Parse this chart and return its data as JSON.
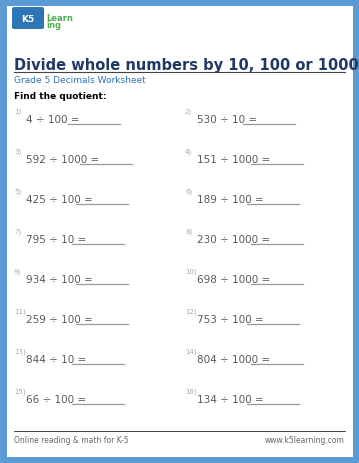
{
  "title": "Divide whole numbers by 10, 100 or 1000",
  "subtitle": "Grade 5 Decimals Worksheet",
  "instruction": "Find the quotient:",
  "footer_left": "Online reading & math for K-5",
  "footer_right": "www.k5learning.com",
  "border_color": "#5b9bd5",
  "title_color": "#1f3864",
  "subtitle_color": "#2e75b6",
  "instruction_color": "#000000",
  "problem_color": "#595959",
  "number_color": "#aaaaaa",
  "line_color": "#999999",
  "footer_color": "#666666",
  "bg_color": "#ffffff",
  "problems_left": [
    {
      "num": "1)",
      "expr": "4 ÷ 100 = "
    },
    {
      "num": "3)",
      "expr": "592 ÷ 1000 = "
    },
    {
      "num": "5)",
      "expr": "425 ÷ 100 = "
    },
    {
      "num": "7)",
      "expr": "795 ÷ 10 = "
    },
    {
      "num": "9)",
      "expr": "934 ÷ 100 = "
    },
    {
      "num": "11)",
      "expr": "259 ÷ 100 = "
    },
    {
      "num": "13)",
      "expr": "844 ÷ 10 = "
    },
    {
      "num": "15)",
      "expr": "66 ÷ 100 = "
    }
  ],
  "problems_right": [
    {
      "num": "2)",
      "expr": "530 ÷ 10 = "
    },
    {
      "num": "4)",
      "expr": "151 ÷ 1000 = "
    },
    {
      "num": "6)",
      "expr": "189 ÷ 100 = "
    },
    {
      "num": "8)",
      "expr": "230 ÷ 1000 = "
    },
    {
      "num": "10)",
      "expr": "698 ÷ 1000 = "
    },
    {
      "num": "12)",
      "expr": "753 ÷ 100 = "
    },
    {
      "num": "14)",
      "expr": "804 ÷ 1000 = "
    },
    {
      "num": "16)",
      "expr": "134 ÷ 100 = "
    }
  ]
}
